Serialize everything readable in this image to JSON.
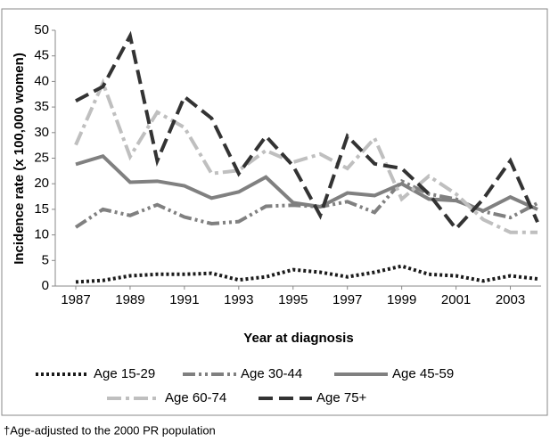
{
  "chart_data": {
    "type": "line",
    "y_label": "Incidence rate (x 100,000 women)",
    "x_label": "Year at diagnosis",
    "footnote": "†Age-adjusted to the 2000 PR population",
    "x": [
      1987,
      1988,
      1989,
      1990,
      1991,
      1992,
      1993,
      1994,
      1995,
      1996,
      1997,
      1998,
      1999,
      2000,
      2001,
      2002,
      2003,
      2004
    ],
    "xlim": [
      1987,
      2004
    ],
    "xticks": [
      1987,
      1989,
      1991,
      1993,
      1995,
      1997,
      1999,
      2001,
      2003
    ],
    "ylim": [
      0,
      50
    ],
    "yticks": [
      0,
      5,
      10,
      15,
      20,
      25,
      30,
      35,
      40,
      45,
      50
    ],
    "series": [
      {
        "name": "Age 15-29",
        "color": "#1a1a1a",
        "dash": "dotted",
        "values": [
          0.8,
          1.1,
          2.0,
          2.3,
          2.3,
          2.5,
          1.2,
          1.8,
          3.2,
          2.7,
          1.8,
          2.7,
          3.9,
          2.3,
          2.0,
          1.0,
          2.0,
          1.4
        ]
      },
      {
        "name": "Age 30-44",
        "color": "#808080",
        "dash": "dash-dot-dot",
        "values": [
          11.5,
          15,
          13.8,
          15.9,
          13.5,
          12.2,
          12.6,
          15.6,
          15.8,
          15.5,
          16.5,
          14.4,
          20.5,
          18,
          17,
          14.6,
          13.4,
          16.2
        ]
      },
      {
        "name": "Age 45-59",
        "color": "#808080",
        "dash": "solid",
        "values": [
          23.8,
          25.4,
          20.3,
          20.5,
          19.6,
          17.2,
          18.4,
          21.3,
          16.3,
          15.5,
          18.2,
          17.7,
          20,
          17,
          16.7,
          14.7,
          17.4,
          15
        ]
      },
      {
        "name": "Age 60-74",
        "color": "#bfbfbf",
        "dash": "dash-dot",
        "values": [
          27.6,
          39.7,
          25.3,
          34,
          31,
          22,
          22.6,
          26.5,
          24.2,
          25.8,
          23,
          28.9,
          17,
          21.5,
          18,
          13,
          10.5,
          10.5
        ]
      },
      {
        "name": "Age 75+",
        "color": "#333333",
        "dash": "dashed",
        "values": [
          36.2,
          39,
          48.9,
          24.5,
          37,
          32.8,
          22,
          29.3,
          23.5,
          13.8,
          29.3,
          23.9,
          23,
          18,
          11.2,
          17,
          24.5,
          12.5
        ]
      }
    ]
  }
}
